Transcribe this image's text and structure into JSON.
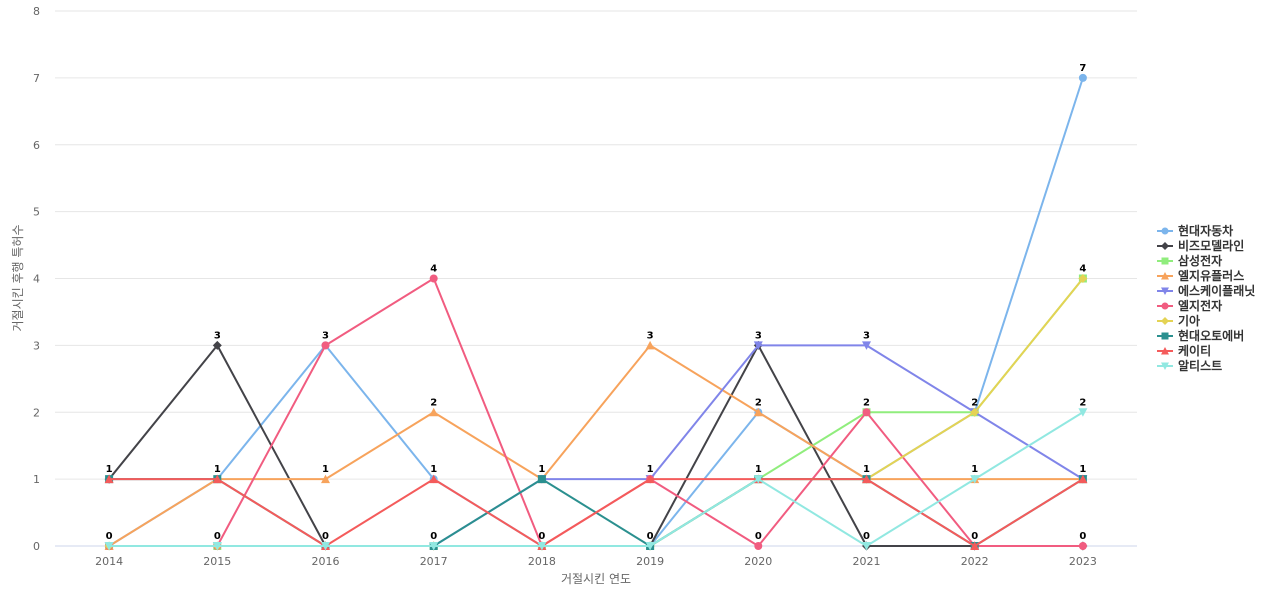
{
  "chart_data": {
    "type": "line",
    "xlabel": "거절시킨 연도",
    "ylabel": "거절시킨 후행 특허수",
    "categories": [
      "2014",
      "2015",
      "2016",
      "2017",
      "2018",
      "2019",
      "2020",
      "2021",
      "2022",
      "2023"
    ],
    "ylim": [
      0,
      8
    ],
    "yticks": [
      0,
      1,
      2,
      3,
      4,
      5,
      6,
      7,
      8
    ],
    "grid": "horizontal",
    "legend_position": "right",
    "series": [
      {
        "name": "현대자동차",
        "color": "#7cb5ec",
        "marker": "circle",
        "values": [
          0,
          1,
          3,
          1,
          0,
          0,
          2,
          1,
          2,
          7
        ]
      },
      {
        "name": "비즈모델라인",
        "color": "#434348",
        "marker": "diamond",
        "values": [
          1,
          3,
          0,
          0,
          0,
          0,
          3,
          0,
          0,
          0
        ]
      },
      {
        "name": "삼성전자",
        "color": "#90ed7d",
        "marker": "square",
        "values": [
          0,
          0,
          0,
          0,
          0,
          0,
          1,
          2,
          2,
          4
        ]
      },
      {
        "name": "엘지유플러스",
        "color": "#f7a35c",
        "marker": "triangle",
        "values": [
          0,
          1,
          1,
          2,
          1,
          3,
          2,
          1,
          1,
          1
        ]
      },
      {
        "name": "에스케이플래닛",
        "color": "#8085e9",
        "marker": "triangle-down",
        "values": [
          0,
          0,
          0,
          0,
          1,
          1,
          3,
          3,
          2,
          1
        ]
      },
      {
        "name": "엘지전자",
        "color": "#f15c80",
        "marker": "circle",
        "values": [
          0,
          0,
          3,
          4,
          0,
          1,
          0,
          2,
          0,
          0
        ]
      },
      {
        "name": "기아",
        "color": "#e4d354",
        "marker": "diamond",
        "values": [
          0,
          0,
          0,
          0,
          0,
          0,
          1,
          1,
          2,
          4
        ]
      },
      {
        "name": "현대오토에버",
        "color": "#2b908f",
        "marker": "square",
        "values": [
          1,
          1,
          0,
          0,
          1,
          0,
          1,
          1,
          0,
          1
        ]
      },
      {
        "name": "케이티",
        "color": "#f45b5b",
        "marker": "triangle",
        "values": [
          1,
          1,
          0,
          1,
          0,
          1,
          1,
          1,
          0,
          1
        ]
      },
      {
        "name": "알티스트",
        "color": "#91e8e1",
        "marker": "triangle-down",
        "values": [
          0,
          0,
          0,
          0,
          0,
          0,
          1,
          0,
          1,
          2
        ]
      }
    ],
    "data_labels": [
      {
        "category": "2014",
        "value": 1,
        "text": "1"
      },
      {
        "category": "2014",
        "value": 0,
        "text": "0"
      },
      {
        "category": "2015",
        "value": 3,
        "text": "3"
      },
      {
        "category": "2015",
        "value": 1,
        "text": "1"
      },
      {
        "category": "2015",
        "value": 0,
        "text": "0"
      },
      {
        "category": "2016",
        "value": 3,
        "text": "3"
      },
      {
        "category": "2016",
        "value": 1,
        "text": "1"
      },
      {
        "category": "2016",
        "value": 0,
        "text": "0"
      },
      {
        "category": "2017",
        "value": 4,
        "text": "4"
      },
      {
        "category": "2017",
        "value": 2,
        "text": "2"
      },
      {
        "category": "2017",
        "value": 1,
        "text": "1"
      },
      {
        "category": "2017",
        "value": 0,
        "text": "0"
      },
      {
        "category": "2018",
        "value": 1,
        "text": "1"
      },
      {
        "category": "2018",
        "value": 0,
        "text": "0"
      },
      {
        "category": "2019",
        "value": 3,
        "text": "3"
      },
      {
        "category": "2019",
        "value": 1,
        "text": "1"
      },
      {
        "category": "2019",
        "value": 0,
        "text": "0"
      },
      {
        "category": "2020",
        "value": 3,
        "text": "3"
      },
      {
        "category": "2020",
        "value": 2,
        "text": "2"
      },
      {
        "category": "2020",
        "value": 1,
        "text": "1"
      },
      {
        "category": "2020",
        "value": 0,
        "text": "0"
      },
      {
        "category": "2021",
        "value": 3,
        "text": "3"
      },
      {
        "category": "2021",
        "value": 2,
        "text": "2"
      },
      {
        "category": "2021",
        "value": 1,
        "text": "1"
      },
      {
        "category": "2021",
        "value": 0,
        "text": "0"
      },
      {
        "category": "2022",
        "value": 2,
        "text": "2"
      },
      {
        "category": "2022",
        "value": 1,
        "text": "1"
      },
      {
        "category": "2022",
        "value": 0,
        "text": "0"
      },
      {
        "category": "2023",
        "value": 7,
        "text": "7"
      },
      {
        "category": "2023",
        "value": 4,
        "text": "4"
      },
      {
        "category": "2023",
        "value": 2,
        "text": "2"
      },
      {
        "category": "2023",
        "value": 1,
        "text": "1"
      },
      {
        "category": "2023",
        "value": 0,
        "text": "0"
      }
    ]
  }
}
